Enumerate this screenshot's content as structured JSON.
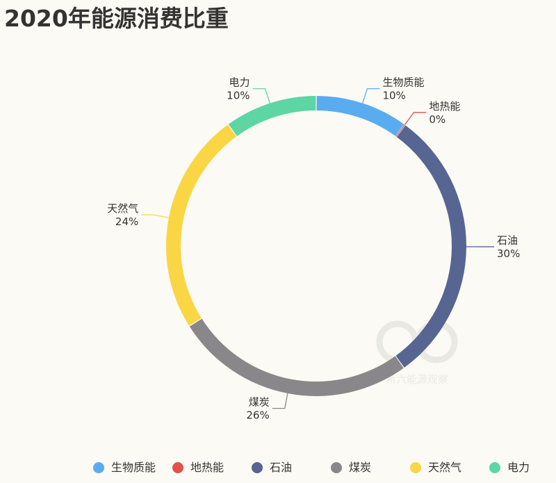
{
  "chart_data": {
    "type": "pie",
    "title": "2020年能源消费比重",
    "categories": [
      "生物质能",
      "地热能",
      "石油",
      "煤炭",
      "天然气",
      "电力"
    ],
    "values": [
      10,
      0,
      30,
      26,
      24,
      10
    ],
    "value_labels": [
      "10%",
      "0%",
      "30%",
      "26%",
      "24%",
      "10%"
    ],
    "colors": [
      "#5aacf0",
      "#e3514d",
      "#566592",
      "#8a878a",
      "#fad645",
      "#5dd6a4"
    ],
    "style": "donut",
    "legend_position": "bottom"
  },
  "watermark": {
    "text": "希六能源观察"
  }
}
